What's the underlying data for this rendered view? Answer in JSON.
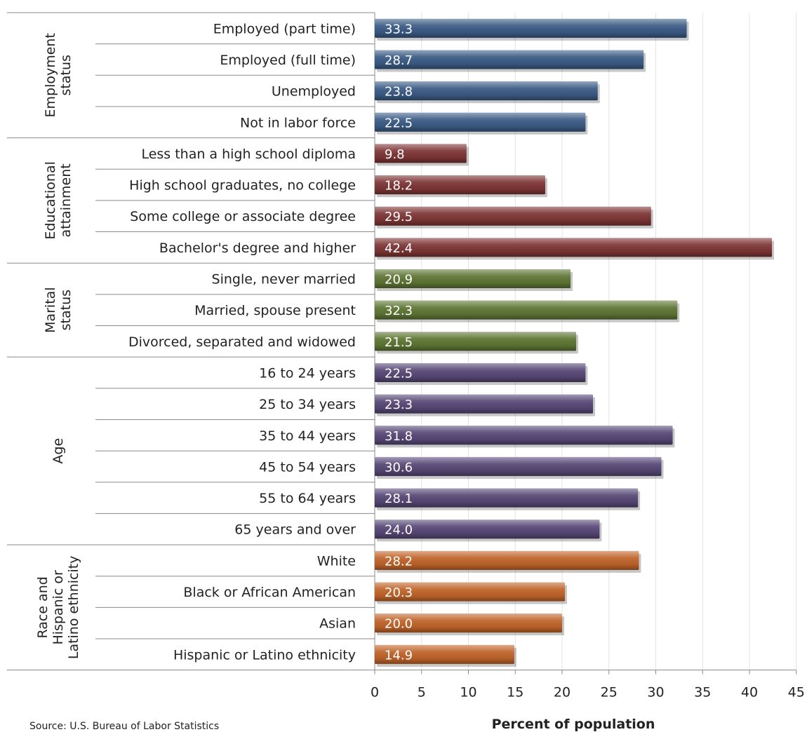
{
  "chart_data": {
    "type": "bar",
    "orientation": "horizontal",
    "xlabel": "Percent of population",
    "xlim": [
      0,
      45
    ],
    "x_ticks": [
      0,
      5,
      10,
      15,
      20,
      25,
      30,
      35,
      40,
      45
    ],
    "grid": true,
    "source": "Source: U.S. Bureau of Labor Statistics",
    "groups": [
      {
        "label": "Employment status",
        "label_lines": [
          "Employment",
          "status"
        ],
        "color": "#3B5B85",
        "categories": [
          "Employed (part time)",
          "Employed (full time)",
          "Unemployed",
          "Not in labor force"
        ],
        "values": [
          33.3,
          28.7,
          23.8,
          22.5
        ]
      },
      {
        "label": "Educational attainment",
        "label_lines": [
          "Educational",
          "attainment"
        ],
        "color": "#7E3535",
        "categories": [
          "Less than a high school diploma",
          "High school graduates, no college",
          "Some college or associate  degree",
          "Bachelor's degree and higher"
        ],
        "values": [
          9.8,
          18.2,
          29.5,
          42.4
        ]
      },
      {
        "label": "Marital status",
        "label_lines": [
          "Marital",
          "status"
        ],
        "color": "#5E7634",
        "categories": [
          "Single, never married",
          "Married, spouse present",
          "Divorced, separated and widowed"
        ],
        "values": [
          20.9,
          32.3,
          21.5
        ]
      },
      {
        "label": "Age",
        "label_lines": [
          "Age"
        ],
        "color": "#574876",
        "categories": [
          "16 to 24 years",
          "25 to 34 years",
          "35 to 44 years",
          "45 to 54 years",
          "55 to 64 years",
          "65 years and over"
        ],
        "values": [
          22.5,
          23.3,
          31.8,
          30.6,
          28.1,
          24.0
        ]
      },
      {
        "label": "Race and Hispanic or Latino ethnicity",
        "label_lines": [
          "Race and",
          "Hispanic or",
          "Latino ethnicity"
        ],
        "color": "#C0642A",
        "categories": [
          "White",
          "Black or African American",
          "Asian",
          "Hispanic or Latino ethnicity"
        ],
        "values": [
          28.2,
          20.3,
          20.0,
          14.9
        ]
      }
    ]
  }
}
